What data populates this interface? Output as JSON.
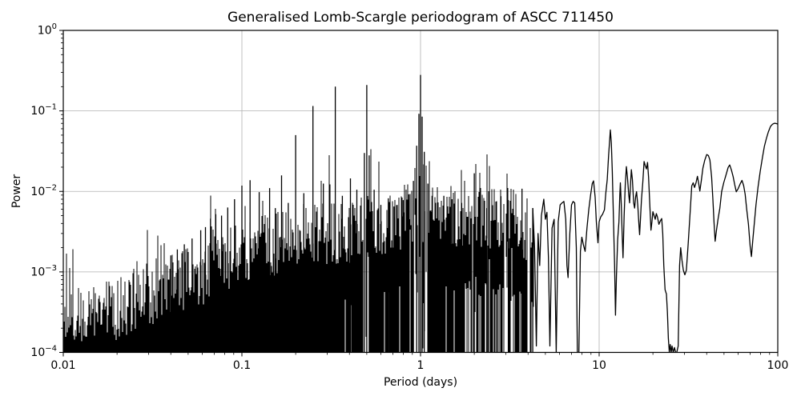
{
  "chart_data": {
    "type": "line",
    "title": "Generalised Lomb-Scargle periodogram of ASCC 711450",
    "xlabel": "Period (days)",
    "ylabel": "Power",
    "xscale": "log",
    "yscale": "log",
    "xlim": [
      0.01,
      100
    ],
    "ylim": [
      0.0001,
      1
    ],
    "grid": true,
    "legend": false,
    "line_color": "#000000",
    "grid_color": "#b0b0b0",
    "background": "#ffffff",
    "x_ticks": {
      "values": [
        0.01,
        0.1,
        1,
        10,
        100
      ],
      "labels": [
        "0.01",
        "0.1",
        "1",
        "10",
        "100"
      ]
    },
    "y_tick_exponents": [
      0,
      -1,
      -2,
      -3,
      -4
    ],
    "main_peaks": [
      [
        0.04,
        0.0016
      ],
      [
        0.0435,
        0.0019
      ],
      [
        0.0476,
        0.0022
      ],
      [
        0.0526,
        0.0026
      ],
      [
        0.0588,
        0.0033
      ],
      [
        0.0625,
        0.0036
      ],
      [
        0.0667,
        0.0046
      ],
      [
        0.0714,
        0.0052
      ],
      [
        0.0769,
        0.005
      ],
      [
        0.0833,
        0.0063
      ],
      [
        0.0909,
        0.008
      ],
      [
        0.1,
        0.0118
      ],
      [
        0.1111,
        0.0138
      ],
      [
        0.125,
        0.0098
      ],
      [
        0.1429,
        0.011
      ],
      [
        0.1538,
        0.0062
      ],
      [
        0.1667,
        0.0158
      ],
      [
        0.1818,
        0.0072
      ],
      [
        0.2,
        0.05
      ],
      [
        0.2222,
        0.0095
      ],
      [
        0.25,
        0.115
      ],
      [
        0.2857,
        0.0125
      ],
      [
        0.3333,
        0.2
      ],
      [
        0.365,
        0.0088
      ],
      [
        0.405,
        0.0145
      ],
      [
        0.44,
        0.0105
      ],
      [
        0.485,
        0.03
      ],
      [
        0.5,
        0.21
      ],
      [
        0.516,
        0.028
      ],
      [
        0.55,
        0.0105
      ],
      [
        0.6,
        0.0068
      ],
      [
        0.66,
        0.0082
      ],
      [
        0.71,
        0.0065
      ],
      [
        0.74,
        0.0068
      ],
      [
        0.8,
        0.0078
      ],
      [
        0.86,
        0.0092
      ],
      [
        0.912,
        0.0135
      ],
      [
        0.952,
        0.037
      ],
      [
        0.98,
        0.092
      ],
      [
        1.0,
        0.28
      ],
      [
        1.021,
        0.085
      ],
      [
        1.05,
        0.031
      ],
      [
        1.1,
        0.0125
      ],
      [
        1.16,
        0.0088
      ],
      [
        1.35,
        0.0088
      ],
      [
        1.5,
        0.008
      ],
      [
        1.7,
        0.0072
      ],
      [
        2.0,
        0.0168
      ],
      [
        2.35,
        0.0062
      ],
      [
        2.82,
        0.0087
      ],
      [
        3.1,
        0.0078
      ],
      [
        3.7,
        0.0108
      ],
      [
        4.25,
        0.0062
      ]
    ],
    "noise_envelope": [
      [
        0.01,
        0.00021
      ],
      [
        0.014,
        0.00027
      ],
      [
        0.02,
        0.00036
      ],
      [
        0.03,
        0.00052
      ],
      [
        0.04,
        0.00068
      ],
      [
        0.055,
        0.00085
      ],
      [
        0.07,
        0.00115
      ],
      [
        0.1,
        0.0017
      ],
      [
        0.14,
        0.0021
      ],
      [
        0.2,
        0.0027
      ],
      [
        0.3,
        0.003
      ],
      [
        0.45,
        0.0033
      ],
      [
        0.6,
        0.0038
      ],
      [
        0.8,
        0.0048
      ],
      [
        1.0,
        0.006
      ],
      [
        1.3,
        0.0052
      ],
      [
        1.8,
        0.005
      ],
      [
        2.5,
        0.0048
      ],
      [
        3.5,
        0.0042
      ],
      [
        4.3,
        0.003
      ]
    ],
    "null_windows": [
      [
        0.5,
        0.018
      ],
      [
        1.0,
        0.04
      ],
      [
        2.0,
        0.012
      ],
      [
        3.0,
        0.01
      ],
      [
        4.05,
        0.01
      ]
    ],
    "smooth_curve": [
      [
        4.25,
        0.0062
      ],
      [
        4.35,
        0.002
      ],
      [
        4.45,
        0.00012
      ],
      [
        4.55,
        0.003
      ],
      [
        4.65,
        0.0012
      ],
      [
        4.75,
        0.005
      ],
      [
        4.9,
        0.008
      ],
      [
        5.0,
        0.0045
      ],
      [
        5.1,
        0.0055
      ],
      [
        5.2,
        0.0015
      ],
      [
        5.3,
        0.00012
      ],
      [
        5.45,
        0.0035
      ],
      [
        5.6,
        0.0045
      ],
      [
        5.75,
        0.0001
      ],
      [
        5.9,
        0.0042
      ],
      [
        6.05,
        0.0068
      ],
      [
        6.2,
        0.0072
      ],
      [
        6.35,
        0.0075
      ],
      [
        6.5,
        0.0045
      ],
      [
        6.6,
        0.0012
      ],
      [
        6.7,
        0.00085
      ],
      [
        6.85,
        0.003
      ],
      [
        7.0,
        0.0068
      ],
      [
        7.15,
        0.0075
      ],
      [
        7.3,
        0.0072
      ],
      [
        7.45,
        0.002
      ],
      [
        7.55,
        0.0001
      ],
      [
        7.7,
        0.0001
      ],
      [
        7.85,
        0.0018
      ],
      [
        8.0,
        0.0027
      ],
      [
        8.15,
        0.0022
      ],
      [
        8.35,
        0.0018
      ],
      [
        8.55,
        0.0035
      ],
      [
        8.75,
        0.006
      ],
      [
        8.95,
        0.009
      ],
      [
        9.15,
        0.0125
      ],
      [
        9.3,
        0.0135
      ],
      [
        9.5,
        0.0085
      ],
      [
        9.65,
        0.0042
      ],
      [
        9.85,
        0.0023
      ],
      [
        10.0,
        0.0042
      ],
      [
        10.2,
        0.0048
      ],
      [
        10.45,
        0.0052
      ],
      [
        10.7,
        0.0059
      ],
      [
        10.9,
        0.0095
      ],
      [
        11.1,
        0.014
      ],
      [
        11.3,
        0.028
      ],
      [
        11.55,
        0.058
      ],
      [
        11.7,
        0.04
      ],
      [
        11.85,
        0.018
      ],
      [
        12.0,
        0.0053
      ],
      [
        12.2,
        0.0012
      ],
      [
        12.35,
        0.00029
      ],
      [
        12.5,
        0.0009
      ],
      [
        12.7,
        0.0025
      ],
      [
        12.9,
        0.0042
      ],
      [
        13.05,
        0.009
      ],
      [
        13.15,
        0.0128
      ],
      [
        13.3,
        0.007
      ],
      [
        13.45,
        0.003
      ],
      [
        13.6,
        0.0015
      ],
      [
        13.8,
        0.005
      ],
      [
        14.0,
        0.012
      ],
      [
        14.2,
        0.0203
      ],
      [
        14.4,
        0.015
      ],
      [
        14.65,
        0.009
      ],
      [
        14.8,
        0.0072
      ],
      [
        15.0,
        0.013
      ],
      [
        15.15,
        0.0186
      ],
      [
        15.35,
        0.014
      ],
      [
        15.6,
        0.0072
      ],
      [
        15.8,
        0.0062
      ],
      [
        16.0,
        0.0085
      ],
      [
        16.2,
        0.0099
      ],
      [
        16.45,
        0.0068
      ],
      [
        16.7,
        0.0038
      ],
      [
        16.85,
        0.0029
      ],
      [
        17.05,
        0.0048
      ],
      [
        17.25,
        0.0078
      ],
      [
        17.55,
        0.013
      ],
      [
        17.85,
        0.0235
      ],
      [
        18.1,
        0.021
      ],
      [
        18.4,
        0.019
      ],
      [
        18.65,
        0.0229
      ],
      [
        18.9,
        0.015
      ],
      [
        19.2,
        0.007
      ],
      [
        19.5,
        0.0033
      ],
      [
        19.75,
        0.0042
      ],
      [
        20.0,
        0.0056
      ],
      [
        20.3,
        0.005
      ],
      [
        20.6,
        0.0045
      ],
      [
        20.9,
        0.0053
      ],
      [
        21.2,
        0.0048
      ],
      [
        21.6,
        0.0039
      ],
      [
        22.0,
        0.0043
      ],
      [
        22.4,
        0.0046
      ],
      [
        22.7,
        0.003
      ],
      [
        23.0,
        0.0012
      ],
      [
        23.4,
        0.0006
      ],
      [
        23.8,
        0.00053
      ],
      [
        24.1,
        0.00032
      ],
      [
        24.4,
        0.00015
      ],
      [
        24.7,
        0.0001
      ],
      [
        25.0,
        0.000125
      ],
      [
        25.3,
        9e-05
      ],
      [
        25.6,
        0.00012
      ],
      [
        26.0,
        8.5e-05
      ],
      [
        26.4,
        0.000115
      ],
      [
        26.8,
        8.5e-05
      ],
      [
        27.2,
        9.5e-05
      ],
      [
        27.7,
        0.00012
      ],
      [
        28.2,
        0.0012
      ],
      [
        28.6,
        0.002
      ],
      [
        29.1,
        0.0014
      ],
      [
        29.6,
        0.00105
      ],
      [
        30.2,
        0.00092
      ],
      [
        30.8,
        0.00105
      ],
      [
        31.5,
        0.0022
      ],
      [
        32.3,
        0.0055
      ],
      [
        33.0,
        0.0117
      ],
      [
        33.6,
        0.0128
      ],
      [
        34.2,
        0.0112
      ],
      [
        34.9,
        0.013
      ],
      [
        35.5,
        0.0154
      ],
      [
        36.1,
        0.0125
      ],
      [
        36.6,
        0.0101
      ],
      [
        37.3,
        0.0135
      ],
      [
        38.1,
        0.0194
      ],
      [
        39.0,
        0.0243
      ],
      [
        40.0,
        0.0287
      ],
      [
        40.9,
        0.0279
      ],
      [
        41.7,
        0.0245
      ],
      [
        42.6,
        0.0151
      ],
      [
        43.3,
        0.0083
      ],
      [
        44.0,
        0.004
      ],
      [
        44.6,
        0.0024
      ],
      [
        45.4,
        0.0033
      ],
      [
        46.3,
        0.0045
      ],
      [
        47.4,
        0.0062
      ],
      [
        48.5,
        0.0099
      ],
      [
        49.8,
        0.0128
      ],
      [
        51.2,
        0.0158
      ],
      [
        52.7,
        0.0198
      ],
      [
        53.8,
        0.0213
      ],
      [
        55.0,
        0.0185
      ],
      [
        56.2,
        0.0154
      ],
      [
        57.4,
        0.0122
      ],
      [
        58.6,
        0.0099
      ],
      [
        60.0,
        0.0108
      ],
      [
        61.5,
        0.0123
      ],
      [
        63.0,
        0.0137
      ],
      [
        64.4,
        0.0118
      ],
      [
        65.7,
        0.0092
      ],
      [
        67.0,
        0.006
      ],
      [
        68.5,
        0.0039
      ],
      [
        70.0,
        0.0021
      ],
      [
        71.2,
        0.00155
      ],
      [
        72.4,
        0.0024
      ],
      [
        73.8,
        0.0039
      ],
      [
        75.5,
        0.0068
      ],
      [
        77.6,
        0.0114
      ],
      [
        79.8,
        0.0178
      ],
      [
        82.0,
        0.0262
      ],
      [
        84.2,
        0.0363
      ],
      [
        86.4,
        0.0455
      ],
      [
        88.6,
        0.0551
      ],
      [
        91.0,
        0.064
      ],
      [
        93.4,
        0.0683
      ],
      [
        95.7,
        0.0702
      ],
      [
        97.8,
        0.0698
      ],
      [
        100,
        0.0686
      ]
    ]
  }
}
